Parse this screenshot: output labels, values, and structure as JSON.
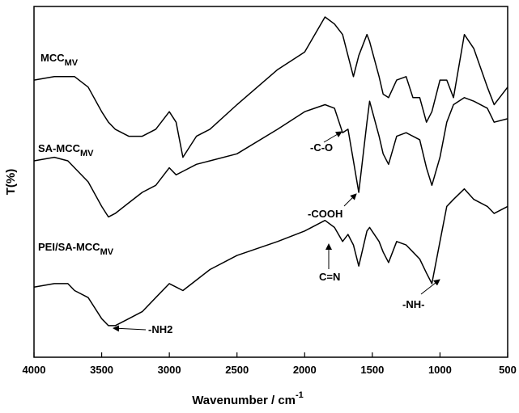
{
  "chart_data": {
    "type": "line",
    "xlabel": "Wavenumber / cm",
    "xlabel_sup": "-1",
    "ylabel": "T(%)",
    "x": [
      4000,
      3850,
      3750,
      3700,
      3600,
      3500,
      3450,
      3400,
      3300,
      3200,
      3100,
      3000,
      2950,
      2900,
      2800,
      2700,
      2500,
      2200,
      2000,
      1850,
      1780,
      1720,
      1680,
      1640,
      1600,
      1540,
      1520,
      1450,
      1420,
      1380,
      1320,
      1250,
      1200,
      1150,
      1100,
      1060,
      1000,
      950,
      900,
      820,
      750,
      650,
      600,
      500
    ],
    "series": [
      {
        "name": "MCC",
        "name_sub": "MV",
        "color": "#000000",
        "values": [
          79,
          80,
          80,
          80,
          77,
          70,
          67,
          65,
          63,
          63,
          65,
          70,
          67,
          57,
          63,
          65,
          72,
          82,
          87,
          97,
          95,
          92,
          86,
          80,
          86,
          92,
          90,
          80,
          75,
          74,
          79,
          80,
          74,
          74,
          67,
          70,
          79,
          79,
          74,
          92,
          88,
          77,
          72,
          77
        ]
      },
      {
        "name": "SA-MCC",
        "name_sub": "MV",
        "color": "#000000",
        "values": [
          56,
          57,
          56,
          54,
          50,
          43,
          40,
          41,
          44,
          47,
          49,
          54,
          52,
          53,
          55,
          56,
          58,
          65,
          70,
          72,
          71,
          64,
          65,
          56,
          47,
          67,
          73,
          63,
          58,
          55,
          63,
          64,
          63,
          62,
          54,
          49,
          57,
          67,
          72,
          74,
          73,
          71,
          67,
          68
        ]
      },
      {
        "name": "PEI/SA-MCC",
        "name_sub": "MV",
        "color": "#000000",
        "values": [
          20,
          21,
          21,
          19,
          17,
          11,
          9,
          9,
          11,
          13,
          17,
          21,
          20,
          19,
          22,
          25,
          29,
          33,
          36,
          39,
          37,
          33,
          35,
          32,
          26,
          36,
          37,
          33,
          30,
          27,
          33,
          32,
          30,
          28,
          24,
          21,
          33,
          43,
          45,
          48,
          45,
          43,
          41,
          43
        ]
      }
    ],
    "annotations": [
      "-C-O",
      "-COOH",
      "C=N",
      "-NH2",
      "-NH-"
    ],
    "xlim": [
      4000,
      500
    ],
    "xticks": [
      4000,
      3500,
      3000,
      2500,
      2000,
      1500,
      1000,
      500
    ],
    "ylim": [
      0,
      100
    ],
    "grid": false
  }
}
